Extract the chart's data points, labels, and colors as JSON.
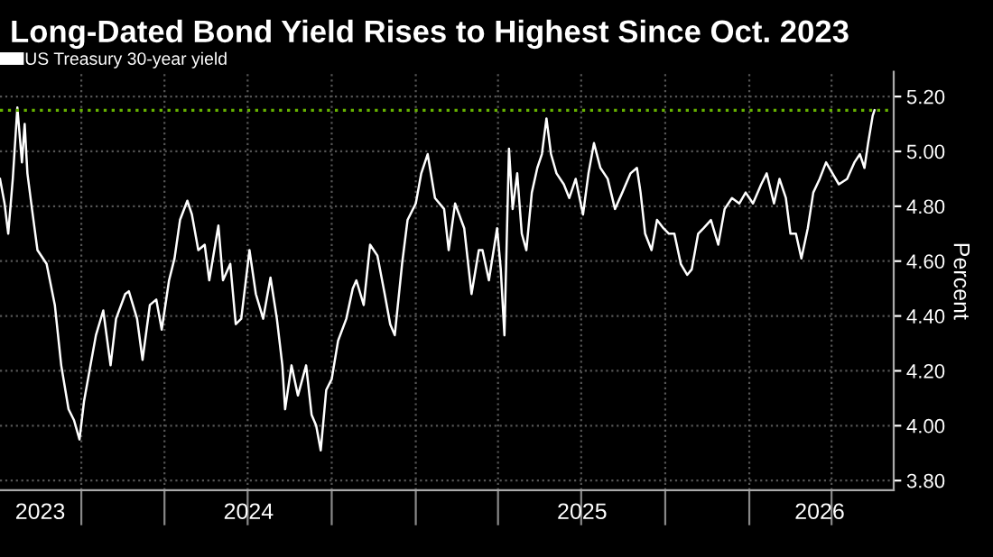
{
  "chart_data": {
    "type": "line",
    "title": "Long-Dated Bond Yield Rises to Highest Since Oct. 2023",
    "ylabel": "Percent",
    "x": [
      "2023-10-04",
      "2023-10-09",
      "2023-10-13",
      "2023-10-18",
      "2023-10-23",
      "2023-10-28",
      "2023-10-31",
      "2023-11-03",
      "2023-11-08",
      "2023-11-14",
      "2023-11-24",
      "2023-12-03",
      "2023-12-10",
      "2023-12-18",
      "2023-12-24",
      "2023-12-30",
      "2024-01-04",
      "2024-01-11",
      "2024-01-17",
      "2024-01-25",
      "2024-02-02",
      "2024-02-08",
      "2024-02-18",
      "2024-02-22",
      "2024-03-02",
      "2024-03-08",
      "2024-03-16",
      "2024-03-23",
      "2024-03-29",
      "2024-04-06",
      "2024-04-12",
      "2024-04-18",
      "2024-04-26",
      "2024-05-01",
      "2024-05-08",
      "2024-05-15",
      "2024-05-20",
      "2024-05-30",
      "2024-06-04",
      "2024-06-12",
      "2024-06-18",
      "2024-06-24",
      "2024-07-03",
      "2024-07-10",
      "2024-07-18",
      "2024-07-26",
      "2024-08-02",
      "2024-08-08",
      "2024-08-11",
      "2024-08-18",
      "2024-08-25",
      "2024-09-03",
      "2024-09-09",
      "2024-09-14",
      "2024-09-19",
      "2024-09-25",
      "2024-10-01",
      "2024-10-08",
      "2024-10-17",
      "2024-10-24",
      "2024-10-28",
      "2024-11-05",
      "2024-11-12",
      "2024-11-20",
      "2024-11-28",
      "2024-12-04",
      "2024-12-09",
      "2024-12-17",
      "2024-12-23",
      "2025-01-01",
      "2025-01-07",
      "2025-01-14",
      "2025-01-22",
      "2025-02-01",
      "2025-02-06",
      "2025-02-13",
      "2025-02-23",
      "2025-03-03",
      "2025-03-11",
      "2025-03-15",
      "2025-03-22",
      "2025-03-31",
      "2025-04-04",
      "2025-04-08",
      "2025-04-13",
      "2025-04-17",
      "2025-04-22",
      "2025-04-27",
      "2025-05-02",
      "2025-05-08",
      "2025-05-14",
      "2025-05-19",
      "2025-05-24",
      "2025-05-29",
      "2025-06-04",
      "2025-06-12",
      "2025-06-18",
      "2025-06-25",
      "2025-07-03",
      "2025-07-09",
      "2025-07-15",
      "2025-07-22",
      "2025-07-30",
      "2025-08-07",
      "2025-08-15",
      "2025-08-24",
      "2025-08-31",
      "2025-09-04",
      "2025-09-09",
      "2025-09-16",
      "2025-09-22",
      "2025-09-29",
      "2025-10-05",
      "2025-10-11",
      "2025-10-18",
      "2025-10-25",
      "2025-10-30",
      "2025-11-06",
      "2025-11-12",
      "2025-11-20",
      "2025-11-28",
      "2025-12-05",
      "2025-12-13",
      "2025-12-21",
      "2025-12-28",
      "2026-01-05",
      "2026-01-14",
      "2026-01-20",
      "2026-01-28",
      "2026-02-03",
      "2026-02-10",
      "2026-02-15",
      "2026-02-21",
      "2026-02-27",
      "2026-03-06",
      "2026-03-12",
      "2026-03-19",
      "2026-03-26",
      "2026-04-02",
      "2026-04-09",
      "2026-04-18",
      "2026-04-26",
      "2026-05-02",
      "2026-05-07",
      "2026-05-11",
      "2026-05-16",
      "2026-05-18"
    ],
    "series": [
      {
        "name": "US Treasury 30-year yield",
        "color": "#ffffff",
        "values": [
          4.9,
          4.81,
          4.7,
          4.9,
          5.16,
          4.96,
          5.1,
          4.92,
          4.79,
          4.64,
          4.59,
          4.44,
          4.22,
          4.06,
          4.02,
          3.95,
          4.09,
          4.22,
          4.33,
          4.42,
          4.22,
          4.39,
          4.48,
          4.49,
          4.39,
          4.24,
          4.44,
          4.46,
          4.35,
          4.53,
          4.61,
          4.75,
          4.82,
          4.77,
          4.64,
          4.66,
          4.53,
          4.73,
          4.53,
          4.59,
          4.37,
          4.39,
          4.64,
          4.48,
          4.39,
          4.54,
          4.39,
          4.22,
          4.06,
          4.22,
          4.11,
          4.22,
          4.04,
          4.0,
          3.91,
          4.13,
          4.17,
          4.31,
          4.39,
          4.5,
          4.53,
          4.44,
          4.66,
          4.62,
          4.48,
          4.37,
          4.33,
          4.59,
          4.75,
          4.81,
          4.92,
          4.99,
          4.83,
          4.79,
          4.64,
          4.81,
          4.72,
          4.48,
          4.64,
          4.64,
          4.53,
          4.72,
          4.57,
          4.33,
          5.01,
          4.79,
          4.92,
          4.7,
          4.64,
          4.85,
          4.94,
          4.99,
          5.12,
          4.99,
          4.92,
          4.88,
          4.83,
          4.9,
          4.77,
          4.92,
          5.03,
          4.94,
          4.9,
          4.79,
          4.85,
          4.92,
          4.94,
          4.85,
          4.7,
          4.64,
          4.75,
          4.72,
          4.7,
          4.7,
          4.59,
          4.55,
          4.57,
          4.7,
          4.72,
          4.75,
          4.66,
          4.79,
          4.83,
          4.81,
          4.85,
          4.81,
          4.88,
          4.92,
          4.81,
          4.9,
          4.83,
          4.7,
          4.7,
          4.61,
          4.72,
          4.85,
          4.9,
          4.96,
          4.92,
          4.88,
          4.9,
          4.96,
          4.99,
          4.94,
          5.03,
          5.13,
          5.15
        ]
      }
    ],
    "xlim": [
      "2023-10-04",
      "2026-06-08"
    ],
    "xticks": [
      {
        "value": "2024-01-01",
        "label": null
      },
      {
        "value": "2024-04-01",
        "label": null
      },
      {
        "value": "2024-07-01",
        "label": null
      },
      {
        "value": "2024-10-01",
        "label": null
      },
      {
        "value": "2025-01-01",
        "label": null
      },
      {
        "value": "2025-04-01",
        "label": null
      },
      {
        "value": "2025-07-01",
        "label": null
      },
      {
        "value": "2025-10-01",
        "label": null
      },
      {
        "value": "2026-01-01",
        "label": null
      },
      {
        "value": "2026-04-01",
        "label": null
      },
      {
        "value": "2023-11-17",
        "label": "2023"
      },
      {
        "value": "2024-07-02",
        "label": "2024"
      },
      {
        "value": "2025-07-02",
        "label": "2025"
      },
      {
        "value": "2026-03-19",
        "label": "2026"
      }
    ],
    "ylim": [
      3.765,
      5.29
    ],
    "yticks": [
      {
        "value": 3.8,
        "label": "3.80"
      },
      {
        "value": 4.0,
        "label": "4.00"
      },
      {
        "value": 4.2,
        "label": "4.20"
      },
      {
        "value": 4.4,
        "label": "4.40"
      },
      {
        "value": 4.6,
        "label": "4.60"
      },
      {
        "value": 4.8,
        "label": "4.80"
      },
      {
        "value": 5.0,
        "label": "5.00"
      },
      {
        "value": 5.2,
        "label": "5.20"
      }
    ],
    "ref_lines": [
      {
        "axis": "y",
        "value": 5.15,
        "color": "#66b200",
        "line_style": "dotted"
      }
    ],
    "grid": true,
    "legend": "top left",
    "marker": "none",
    "line_style": "solid"
  }
}
